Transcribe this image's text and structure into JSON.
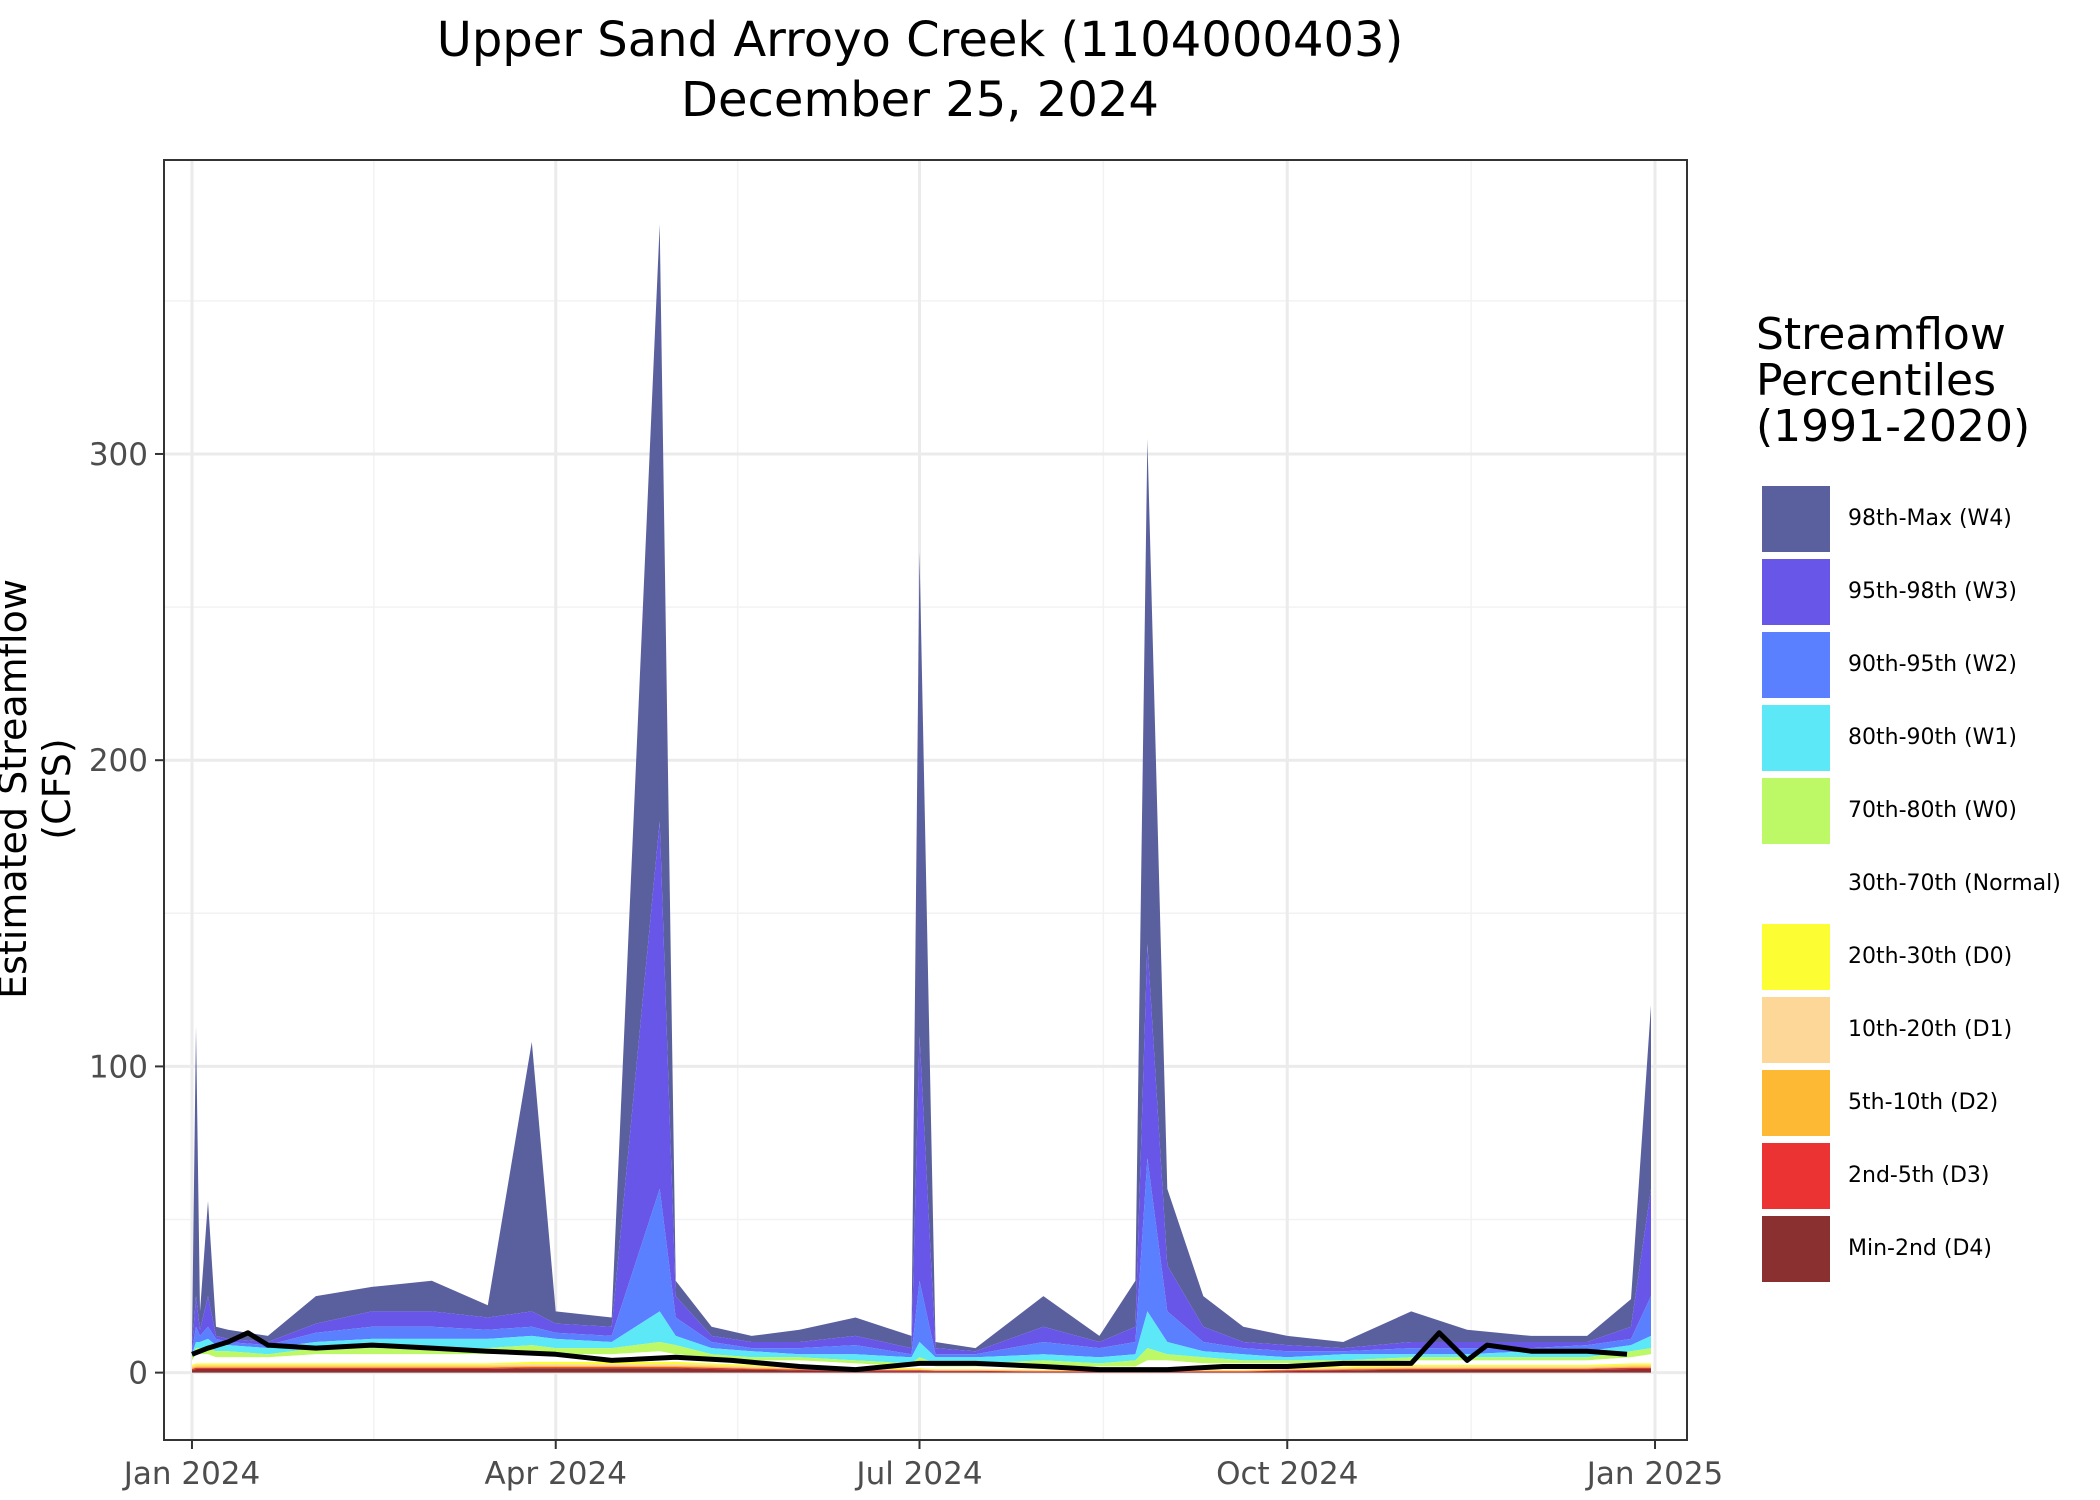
{
  "chart_data": {
    "type": "area",
    "title": "Upper Sand Arroyo Creek (1104000403)",
    "subtitle": "December 25, 2024",
    "xlabel": "",
    "ylabel": "Estimated Streamflow (CFS)",
    "xlim": [
      "2023-12-25",
      "2025-01-09"
    ],
    "ylim": [
      -22,
      396
    ],
    "x_ticks": [
      "Jan 2024",
      "Apr 2024",
      "Jul 2024",
      "Oct 2024",
      "Jan 2025"
    ],
    "x_tick_dates": [
      "2024-01-01",
      "2024-04-01",
      "2024-07-01",
      "2024-10-01",
      "2025-01-01"
    ],
    "y_ticks": [
      0,
      100,
      200,
      300
    ],
    "grid": true,
    "legend": {
      "title_lines": [
        "Streamflow",
        "Percentiles",
        "(1991-2020)"
      ],
      "placement": "right",
      "entries": [
        {
          "label": "98th-Max (W4)",
          "color": "#5a609e"
        },
        {
          "label": "95th-98th (W3)",
          "color": "#6756e8"
        },
        {
          "label": "90th-95th (W2)",
          "color": "#5b80ff"
        },
        {
          "label": "80th-90th (W1)",
          "color": "#5de8f8"
        },
        {
          "label": "70th-80th (W0)",
          "color": "#bdf867"
        },
        {
          "label": "30th-70th (Normal)",
          "color": "#ffffff"
        },
        {
          "label": "20th-30th (D0)",
          "color": "#fdfd33"
        },
        {
          "label": "10th-20th (D1)",
          "color": "#fdd797"
        },
        {
          "label": "5th-10th (D2)",
          "color": "#fdb933"
        },
        {
          "label": "2nd-5th (D3)",
          "color": "#ec3333"
        },
        {
          "label": "Min-2nd (D4)",
          "color": "#8b3030"
        }
      ]
    },
    "percentile_bands": {
      "x": [
        "2024-01-01",
        "2024-01-02",
        "2024-01-03",
        "2024-01-05",
        "2024-01-07",
        "2024-01-10",
        "2024-01-20",
        "2024-02-01",
        "2024-02-15",
        "2024-03-01",
        "2024-03-15",
        "2024-03-26",
        "2024-04-01",
        "2024-04-15",
        "2024-04-27",
        "2024-05-01",
        "2024-05-10",
        "2024-05-20",
        "2024-06-01",
        "2024-06-15",
        "2024-06-29",
        "2024-07-01",
        "2024-07-05",
        "2024-07-15",
        "2024-08-01",
        "2024-08-15",
        "2024-08-24",
        "2024-08-27",
        "2024-09-01",
        "2024-09-10",
        "2024-09-20",
        "2024-10-01",
        "2024-10-15",
        "2024-11-01",
        "2024-11-15",
        "2024-12-01",
        "2024-12-15",
        "2024-12-26",
        "2024-12-31"
      ],
      "max": [
        10,
        113,
        20,
        56,
        15,
        14,
        12,
        25,
        28,
        30,
        22,
        108,
        20,
        18,
        375,
        30,
        15,
        12,
        14,
        18,
        12,
        268,
        10,
        8,
        25,
        12,
        30,
        305,
        60,
        25,
        15,
        12,
        10,
        20,
        14,
        12,
        12,
        24,
        120
      ],
      "p98": [
        8,
        25,
        14,
        25,
        12,
        11,
        10,
        16,
        20,
        20,
        18,
        20,
        16,
        15,
        180,
        25,
        12,
        10,
        10,
        12,
        8,
        110,
        8,
        7,
        15,
        10,
        15,
        140,
        35,
        15,
        10,
        9,
        8,
        10,
        10,
        10,
        10,
        15,
        60
      ],
      "p95": [
        7,
        15,
        12,
        15,
        11,
        10,
        9,
        13,
        15,
        15,
        14,
        15,
        13,
        12,
        60,
        18,
        10,
        8,
        8,
        9,
        6,
        30,
        6,
        6,
        10,
        8,
        10,
        70,
        20,
        10,
        8,
        7,
        7,
        8,
        8,
        8,
        9,
        11,
        25
      ],
      "p90": [
        6,
        10,
        10,
        11,
        9,
        9,
        8,
        10,
        11,
        11,
        11,
        12,
        11,
        10,
        20,
        12,
        8,
        7,
        6,
        6,
        5,
        10,
        5,
        5,
        6,
        5,
        6,
        20,
        10,
        7,
        6,
        5,
        6,
        6,
        6,
        7,
        7,
        9,
        12
      ],
      "p80": [
        5,
        8,
        8,
        8,
        7,
        7,
        6,
        8,
        8,
        8,
        8,
        9,
        8,
        8,
        10,
        9,
        6,
        5,
        5,
        4,
        3,
        5,
        3,
        3,
        4,
        3,
        4,
        8,
        6,
        5,
        4,
        4,
        4,
        5,
        5,
        5,
        5,
        7,
        8
      ],
      "p70": [
        4,
        6,
        6,
        6,
        5,
        5,
        5,
        6,
        6,
        6,
        6,
        7,
        6,
        6,
        7,
        6,
        5,
        4,
        4,
        3,
        2,
        3,
        2,
        2,
        2,
        2,
        2,
        4,
        4,
        3,
        3,
        3,
        3,
        4,
        4,
        4,
        4,
        5,
        6
      ],
      "p30": [
        2.5,
        3,
        3,
        3,
        3,
        3,
        3,
        3,
        3,
        3,
        3,
        3.5,
        3.5,
        3.5,
        3.5,
        3.5,
        3,
        2.5,
        2,
        1.5,
        1.5,
        1.5,
        1.2,
        1.2,
        1,
        1,
        1,
        1,
        1,
        1,
        1,
        1.5,
        2,
        2.5,
        2.5,
        2.5,
        2.5,
        3,
        3
      ],
      "p20": [
        2,
        2.5,
        2.5,
        2.5,
        2.5,
        2.5,
        2.5,
        2.5,
        2.5,
        2.5,
        2.5,
        2.8,
        2.8,
        2.8,
        2.8,
        2.8,
        2.5,
        2,
        1.6,
        1.2,
        1.2,
        1.2,
        1,
        1,
        0.8,
        0.8,
        0.8,
        0.8,
        0.8,
        0.8,
        0.8,
        1.2,
        1.6,
        2,
        2,
        2,
        2,
        2.5,
        2.5
      ],
      "p10": [
        1.6,
        2,
        2,
        2,
        2,
        2,
        2,
        2,
        2,
        2,
        2,
        2.2,
        2.2,
        2.2,
        2.2,
        2.2,
        2,
        1.6,
        1.3,
        1,
        1,
        1,
        0.8,
        0.8,
        0.6,
        0.6,
        0.6,
        0.6,
        0.6,
        0.6,
        0.6,
        1,
        1.3,
        1.6,
        1.6,
        1.6,
        1.6,
        2,
        2
      ],
      "p5": [
        1.2,
        1.6,
        1.6,
        1.6,
        1.6,
        1.6,
        1.6,
        1.6,
        1.6,
        1.6,
        1.6,
        1.8,
        1.8,
        1.8,
        1.8,
        1.8,
        1.6,
        1.3,
        1,
        0.8,
        0.8,
        0.8,
        0.6,
        0.6,
        0.4,
        0.4,
        0.4,
        0.4,
        0.4,
        0.4,
        0.4,
        0.8,
        1,
        1.3,
        1.3,
        1.3,
        1.3,
        1.6,
        1.6
      ],
      "p2": [
        0.8,
        1.2,
        1.2,
        1.2,
        1.2,
        1.2,
        1.2,
        1.2,
        1.2,
        1.2,
        1.2,
        1.4,
        1.4,
        1.4,
        1.4,
        1.4,
        1.2,
        1,
        0.7,
        0.5,
        0.5,
        0.5,
        0.4,
        0.4,
        0.2,
        0.2,
        0.2,
        0.2,
        0.2,
        0.2,
        0.2,
        0.5,
        0.7,
        1,
        1,
        1,
        1,
        1.2,
        1.2
      ],
      "min": [
        0,
        0,
        0,
        0,
        0,
        0,
        0,
        0,
        0,
        0,
        0,
        0,
        0,
        0,
        0,
        0,
        0,
        0,
        0,
        0,
        0,
        0,
        0,
        0,
        0,
        0,
        0,
        0,
        0,
        0,
        0,
        0,
        0,
        0,
        0,
        0,
        0,
        0,
        0
      ]
    },
    "series": [
      {
        "x": [
          "2024-01-01",
          "2024-01-05",
          "2024-01-10",
          "2024-01-15",
          "2024-01-20",
          "2024-02-01",
          "2024-02-15",
          "2024-03-01",
          "2024-03-15",
          "2024-04-01",
          "2024-04-15",
          "2024-05-01",
          "2024-05-15",
          "2024-06-01",
          "2024-06-15",
          "2024-07-01",
          "2024-07-15",
          "2024-08-01",
          "2024-08-15",
          "2024-09-01",
          "2024-09-15",
          "2024-10-01",
          "2024-10-15",
          "2024-11-01",
          "2024-11-08",
          "2024-11-15",
          "2024-11-20",
          "2024-12-01",
          "2024-12-15",
          "2024-12-25"
        ],
        "values": [
          6,
          8,
          10,
          13,
          9,
          8,
          9,
          8,
          7,
          6,
          4,
          5,
          4,
          2,
          1,
          3,
          3,
          2,
          1,
          1,
          2,
          2,
          3,
          3,
          13,
          4,
          9,
          7,
          7,
          6
        ]
      }
    ]
  }
}
